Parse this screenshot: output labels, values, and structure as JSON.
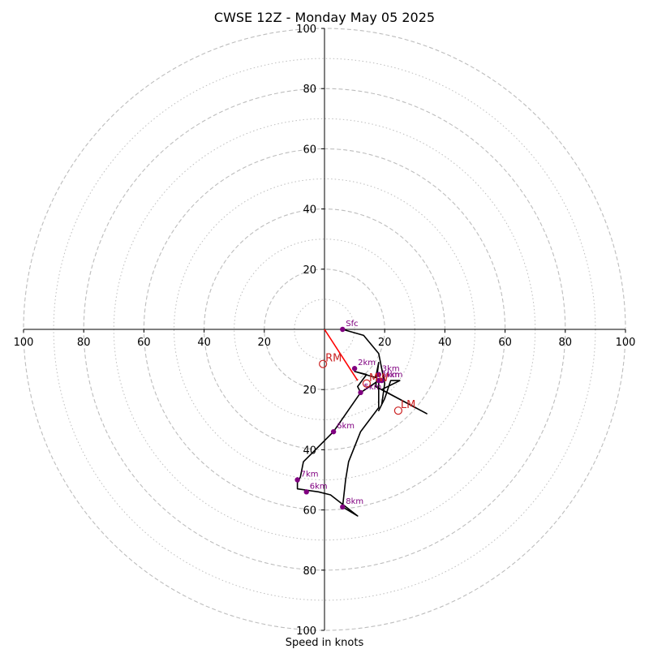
{
  "chart_data": {
    "type": "hodograph",
    "title": "CWSE 12Z - Monday May 05 2025",
    "xlabel": "Speed in knots",
    "range": [
      -100,
      100
    ],
    "ring_major": [
      20,
      40,
      60,
      80,
      100
    ],
    "ring_minor": [
      10,
      30,
      50,
      70,
      90
    ],
    "tick_labels": {
      "left": [
        "100",
        "80",
        "60",
        "40",
        "20"
      ],
      "right": [
        "20",
        "40",
        "60",
        "80",
        "100"
      ],
      "top": [
        "20",
        "40",
        "60",
        "80",
        "100"
      ],
      "bottom": [
        "20",
        "40",
        "60",
        "80",
        "100"
      ]
    },
    "grid": true,
    "hodograph_trace": [
      [
        6,
        0
      ],
      [
        13,
        -2
      ],
      [
        18,
        -8
      ],
      [
        20,
        -18
      ],
      [
        19,
        -25
      ],
      [
        18,
        -27
      ],
      [
        20,
        -23
      ],
      [
        22,
        -17
      ],
      [
        25,
        -17
      ],
      [
        19,
        -20
      ],
      [
        34,
        -28
      ],
      [
        17,
        -19
      ],
      [
        18,
        -11
      ],
      [
        17,
        -16
      ],
      [
        10,
        -14
      ],
      [
        14,
        -15
      ],
      [
        11,
        -19
      ],
      [
        12,
        -21
      ],
      [
        18,
        -17
      ],
      [
        18,
        -26
      ],
      [
        12,
        -34
      ],
      [
        8,
        -44
      ],
      [
        7,
        -50
      ],
      [
        6,
        -59
      ],
      [
        11,
        -62
      ],
      [
        2,
        -55
      ],
      [
        -2,
        -54
      ],
      [
        -9,
        -53
      ],
      [
        -9,
        -51
      ],
      [
        -8,
        -49
      ],
      [
        -7,
        -44
      ],
      [
        3,
        -34
      ],
      [
        12,
        -21
      ]
    ],
    "height_markers": [
      {
        "label": "Sfc",
        "u": 6,
        "v": 0
      },
      {
        "label": "2km",
        "u": 10,
        "v": -13
      },
      {
        "label": "3km",
        "u": 18,
        "v": -15
      },
      {
        "label": "4km",
        "u": 19,
        "v": -17
      },
      {
        "label": "1km",
        "u": 18,
        "v": -17
      },
      {
        "label": "5km",
        "u": 12,
        "v": -21
      },
      {
        "label": "6km",
        "u": 3,
        "v": -34
      },
      {
        "label": "7km",
        "u": -9,
        "v": -50
      },
      {
        "label": "6km",
        "u": -6,
        "v": -54
      },
      {
        "label": "8km",
        "u": 6,
        "v": -59
      }
    ],
    "storm_motions": [
      {
        "label": "RM",
        "u": -0.5,
        "v": -11.5
      },
      {
        "label": "LM",
        "u": 24.5,
        "v": -27
      },
      {
        "label": "MW",
        "u": 14,
        "v": -18
      }
    ],
    "shear_vector": [
      [
        0,
        0
      ],
      [
        11,
        -17
      ]
    ]
  },
  "colors": {
    "ring": "#bdbdbd",
    "axis": "#000000",
    "trace": "#000000",
    "marker": "#800080",
    "storm": "#cc2222",
    "shear": "#ff0000"
  }
}
